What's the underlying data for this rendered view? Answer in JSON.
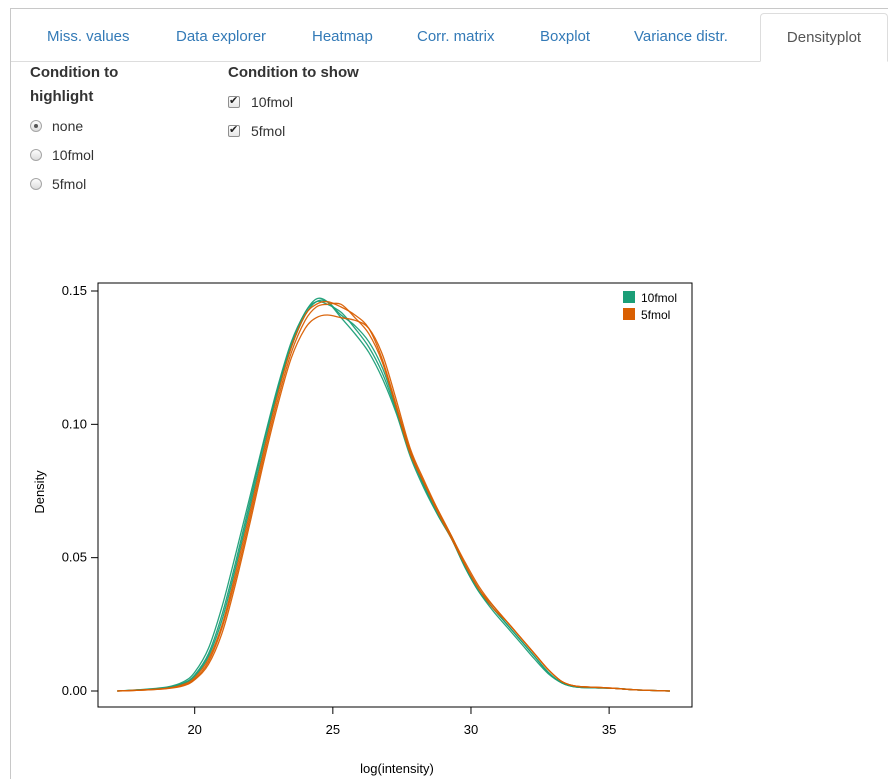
{
  "tabs": [
    {
      "label": "Miss. values",
      "active": false
    },
    {
      "label": "Data explorer",
      "active": false
    },
    {
      "label": "Heatmap",
      "active": false
    },
    {
      "label": "Corr. matrix",
      "active": false
    },
    {
      "label": "Boxplot",
      "active": false
    },
    {
      "label": "Variance distr.",
      "active": false
    },
    {
      "label": "Densityplot",
      "active": true
    }
  ],
  "highlight": {
    "title_line1": "Condition to",
    "title_line2": "highlight",
    "options": [
      {
        "label": "none",
        "selected": true
      },
      {
        "label": "10fmol",
        "selected": false
      },
      {
        "label": "5fmol",
        "selected": false
      }
    ]
  },
  "show": {
    "title": "Condition to show",
    "options": [
      {
        "label": "10fmol",
        "checked": true
      },
      {
        "label": "5fmol",
        "checked": true
      }
    ]
  },
  "chart_data": {
    "type": "line",
    "xlabel": "log(intensity)",
    "ylabel": "Density",
    "xlim": [
      16.5,
      38.0
    ],
    "ylim": [
      -0.006,
      0.153
    ],
    "xticks": [
      "20",
      "25",
      "30",
      "35"
    ],
    "yticks": [
      "0.00",
      "0.05",
      "0.10",
      "0.15"
    ],
    "legend_position": "top-right",
    "colors": {
      "10fmol": "#1b9e77",
      "5fmol": "#d95f02"
    },
    "legend": [
      {
        "name": "10fmol",
        "color": "#1b9e77"
      },
      {
        "name": "5fmol",
        "color": "#d95f02"
      }
    ],
    "series": [
      {
        "name": "10fmol",
        "color": "#1b9e77",
        "x": [
          17.2,
          18.0,
          19.0,
          19.6,
          20.0,
          20.5,
          21.0,
          21.5,
          22.0,
          22.5,
          23.0,
          23.5,
          24.0,
          24.4,
          24.8,
          25.3,
          25.8,
          26.3,
          26.8,
          27.3,
          27.8,
          28.3,
          28.8,
          29.3,
          29.8,
          30.3,
          30.8,
          31.3,
          31.8,
          32.3,
          32.8,
          33.3,
          33.8,
          34.5,
          35.2,
          36.0,
          37.2
        ],
        "y": [
          0.0,
          0.0005,
          0.0015,
          0.0035,
          0.007,
          0.016,
          0.032,
          0.052,
          0.073,
          0.094,
          0.114,
          0.131,
          0.142,
          0.147,
          0.146,
          0.14,
          0.134,
          0.127,
          0.117,
          0.104,
          0.088,
          0.076,
          0.066,
          0.057,
          0.046,
          0.037,
          0.031,
          0.025,
          0.019,
          0.013,
          0.007,
          0.003,
          0.0015,
          0.0012,
          0.001,
          0.0004,
          0.0
        ]
      },
      {
        "name": "10fmol",
        "color": "#1b9e77",
        "x": [
          17.2,
          18.0,
          19.0,
          19.6,
          20.0,
          20.5,
          21.0,
          21.5,
          22.0,
          22.5,
          23.0,
          23.5,
          24.0,
          24.4,
          24.8,
          25.3,
          25.8,
          26.3,
          26.8,
          27.3,
          27.8,
          28.3,
          28.8,
          29.3,
          29.8,
          30.3,
          30.8,
          31.3,
          31.8,
          32.3,
          32.8,
          33.3,
          33.8,
          34.5,
          35.2,
          36.0,
          37.2
        ],
        "y": [
          0.0,
          0.0004,
          0.0012,
          0.003,
          0.006,
          0.014,
          0.029,
          0.049,
          0.071,
          0.093,
          0.113,
          0.13,
          0.142,
          0.146,
          0.145,
          0.142,
          0.136,
          0.129,
          0.119,
          0.105,
          0.089,
          0.077,
          0.067,
          0.058,
          0.047,
          0.038,
          0.031,
          0.025,
          0.019,
          0.013,
          0.007,
          0.003,
          0.0015,
          0.0012,
          0.001,
          0.0004,
          0.0
        ]
      },
      {
        "name": "10fmol",
        "color": "#1b9e77",
        "x": [
          17.2,
          18.0,
          19.0,
          19.6,
          20.0,
          20.5,
          21.0,
          21.5,
          22.0,
          22.5,
          23.0,
          23.5,
          24.0,
          24.4,
          24.8,
          25.3,
          25.8,
          26.3,
          26.8,
          27.3,
          27.8,
          28.3,
          28.8,
          29.3,
          29.8,
          30.3,
          30.8,
          31.3,
          31.8,
          32.3,
          32.8,
          33.3,
          33.8,
          34.5,
          35.2,
          36.0,
          37.2
        ],
        "y": [
          0.0,
          0.0004,
          0.0012,
          0.0028,
          0.0055,
          0.013,
          0.027,
          0.047,
          0.069,
          0.091,
          0.112,
          0.129,
          0.141,
          0.146,
          0.146,
          0.141,
          0.137,
          0.131,
          0.121,
          0.106,
          0.09,
          0.077,
          0.066,
          0.057,
          0.046,
          0.037,
          0.03,
          0.024,
          0.018,
          0.012,
          0.0065,
          0.003,
          0.0015,
          0.0012,
          0.001,
          0.0004,
          0.0
        ]
      },
      {
        "name": "5fmol",
        "color": "#d95f02",
        "x": [
          17.2,
          18.0,
          19.0,
          19.6,
          20.0,
          20.5,
          21.0,
          21.5,
          22.0,
          22.5,
          23.0,
          23.5,
          24.0,
          24.4,
          24.8,
          25.3,
          25.8,
          26.3,
          26.8,
          27.3,
          27.8,
          28.3,
          28.8,
          29.3,
          29.8,
          30.3,
          30.8,
          31.3,
          31.8,
          32.3,
          32.8,
          33.3,
          33.8,
          34.5,
          35.2,
          36.0,
          37.2
        ],
        "y": [
          0.0,
          0.0003,
          0.001,
          0.0025,
          0.005,
          0.012,
          0.025,
          0.045,
          0.067,
          0.09,
          0.111,
          0.129,
          0.141,
          0.145,
          0.146,
          0.144,
          0.141,
          0.136,
          0.124,
          0.107,
          0.09,
          0.078,
          0.068,
          0.058,
          0.047,
          0.038,
          0.032,
          0.026,
          0.02,
          0.014,
          0.008,
          0.0035,
          0.0018,
          0.0014,
          0.001,
          0.0004,
          0.0
        ]
      },
      {
        "name": "5fmol",
        "color": "#d95f02",
        "x": [
          17.2,
          18.0,
          19.0,
          19.6,
          20.0,
          20.5,
          21.0,
          21.5,
          22.0,
          22.5,
          23.0,
          23.5,
          24.0,
          24.4,
          24.8,
          25.3,
          25.8,
          26.3,
          26.8,
          27.3,
          27.8,
          28.3,
          28.8,
          29.3,
          29.8,
          30.3,
          30.8,
          31.3,
          31.8,
          32.3,
          32.8,
          33.3,
          33.8,
          34.5,
          35.2,
          36.0,
          37.2
        ],
        "y": [
          0.0,
          0.0003,
          0.0009,
          0.002,
          0.0042,
          0.01,
          0.022,
          0.041,
          0.063,
          0.086,
          0.107,
          0.125,
          0.136,
          0.14,
          0.141,
          0.14,
          0.139,
          0.136,
          0.126,
          0.109,
          0.091,
          0.079,
          0.068,
          0.058,
          0.048,
          0.039,
          0.032,
          0.026,
          0.02,
          0.014,
          0.008,
          0.0035,
          0.0018,
          0.0014,
          0.001,
          0.0004,
          0.0
        ]
      },
      {
        "name": "5fmol",
        "color": "#d95f02",
        "x": [
          17.2,
          18.0,
          19.0,
          19.6,
          20.0,
          20.5,
          21.0,
          21.5,
          22.0,
          22.5,
          23.0,
          23.5,
          24.0,
          24.4,
          24.8,
          25.3,
          25.8,
          26.3,
          26.8,
          27.3,
          27.8,
          28.3,
          28.8,
          29.3,
          29.8,
          30.3,
          30.8,
          31.3,
          31.8,
          32.3,
          32.8,
          33.3,
          33.8,
          34.5,
          35.2,
          36.0,
          37.2
        ],
        "y": [
          0.0,
          0.0003,
          0.001,
          0.0022,
          0.0045,
          0.011,
          0.024,
          0.043,
          0.065,
          0.088,
          0.109,
          0.127,
          0.139,
          0.144,
          0.145,
          0.145,
          0.14,
          0.134,
          0.123,
          0.106,
          0.089,
          0.078,
          0.067,
          0.057,
          0.047,
          0.038,
          0.031,
          0.026,
          0.02,
          0.014,
          0.008,
          0.0035,
          0.0018,
          0.0014,
          0.001,
          0.0004,
          0.0
        ]
      }
    ]
  }
}
